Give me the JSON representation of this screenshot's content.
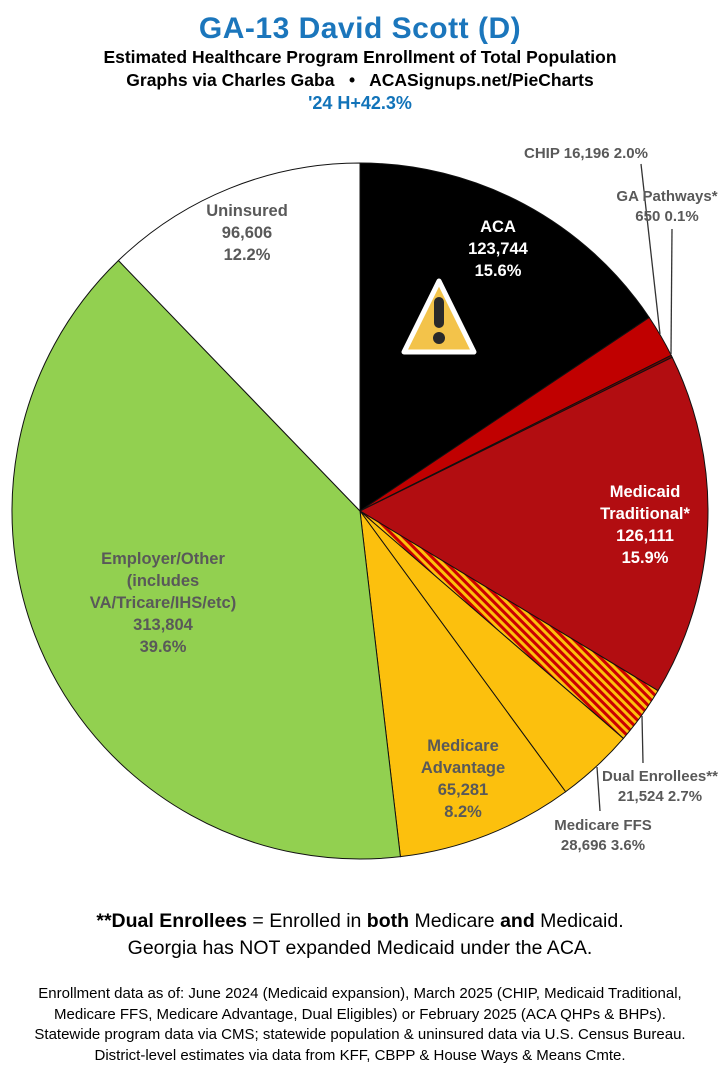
{
  "header": {
    "title": "GA-13 David Scott (D)",
    "subtitle": "Estimated Healthcare Program Enrollment of Total Population",
    "credit": "Graphs via Charles Gaba   •   ACASignups.net/PieCharts",
    "change_note": "'24 H+42.3%",
    "title_color": "#1b76bc",
    "change_color": "#1173b9"
  },
  "chart_data": {
    "type": "pie",
    "title": "Estimated Healthcare Program Enrollment of Total Population",
    "direction": "clockwise",
    "start_angle_deg": 0,
    "total_label_note": "values are people enrolled",
    "label_gray": "#595959",
    "slices": [
      {
        "id": "aca",
        "name": "ACA",
        "value": 123744,
        "value_label": "123,744",
        "pct": 15.6,
        "pct_label": "15.6%",
        "color": "#000000",
        "label_color": "#ffffff",
        "label_placement": "inside",
        "label_lines": [
          "ACA",
          "123,744",
          "15.6%"
        ],
        "warning_icon": true
      },
      {
        "id": "chip",
        "name": "CHIP",
        "value": 16196,
        "value_label": "16,196",
        "pct": 2.0,
        "pct_label": "2.0%",
        "color": "#c00000",
        "label_color": "#595959",
        "label_placement": "outside",
        "label_lines": [
          "CHIP 16,196 2.0%"
        ]
      },
      {
        "id": "pathways",
        "name": "GA Pathways*",
        "value": 650,
        "value_label": "650",
        "pct": 0.1,
        "pct_label": "0.1%",
        "color": "#7a0000",
        "label_color": "#595959",
        "label_placement": "outside",
        "label_lines": [
          "GA Pathways*",
          "650 0.1%"
        ]
      },
      {
        "id": "medicaid",
        "name": "Medicaid Traditional*",
        "value": 126111,
        "value_label": "126,111",
        "pct": 15.9,
        "pct_label": "15.9%",
        "color": "#b20d11",
        "label_color": "#ffffff",
        "label_placement": "inside",
        "label_lines": [
          "Medicaid",
          "Traditional*",
          "126,111",
          "15.9%"
        ]
      },
      {
        "id": "dual",
        "name": "Dual Enrollees**",
        "value": 21524,
        "value_label": "21,524",
        "pct": 2.7,
        "pct_label": "2.7%",
        "color": "hatch",
        "hatch": {
          "bg": "#fcc00d",
          "stripe": "#cc0000"
        },
        "label_color": "#595959",
        "label_placement": "outside",
        "label_lines": [
          "Dual Enrollees**",
          "21,524 2.7%"
        ]
      },
      {
        "id": "ffs",
        "name": "Medicare FFS",
        "value": 28696,
        "value_label": "28,696",
        "pct": 3.6,
        "pct_label": "3.6%",
        "color": "#fcc00d",
        "label_color": "#595959",
        "label_placement": "outside",
        "label_lines": [
          "Medicare FFS",
          "28,696 3.6%"
        ]
      },
      {
        "id": "advantage",
        "name": "Medicare Advantage",
        "value": 65281,
        "value_label": "65,281",
        "pct": 8.2,
        "pct_label": "8.2%",
        "color": "#fcc00d",
        "label_color": "#595959",
        "label_placement": "inside",
        "label_lines": [
          "Medicare",
          "Advantage",
          "65,281",
          "8.2%"
        ]
      },
      {
        "id": "employer",
        "name": "Employer/Other (includes VA/Tricare/IHS/etc)",
        "value": 313804,
        "value_label": "313,804",
        "pct": 39.6,
        "pct_label": "39.6%",
        "color": "#92d050",
        "label_color": "#595959",
        "label_placement": "inside",
        "label_lines": [
          "Employer/Other",
          "(includes",
          "VA/Tricare/IHS/etc)",
          "313,804",
          "39.6%"
        ]
      },
      {
        "id": "uninsured",
        "name": "Uninsured",
        "value": 96606,
        "value_label": "96,606",
        "pct": 12.2,
        "pct_label": "12.2%",
        "color": "#ffffff",
        "label_color": "#595959",
        "label_placement": "inside",
        "label_lines": [
          "Uninsured",
          "96,606",
          "12.2%"
        ]
      }
    ],
    "warning_icon": {
      "name": "warning-icon",
      "fill": "#f3c34a",
      "mark_color": "#2a2a2a",
      "border": "#ffffff"
    }
  },
  "footer": {
    "bold_line_segments": [
      {
        "text": "**Dual Enrollees",
        "bold": true
      },
      {
        "text": " = Enrolled in ",
        "bold": false
      },
      {
        "text": "both",
        "bold": true
      },
      {
        "text": " Medicare ",
        "bold": false
      },
      {
        "text": "and",
        "bold": true
      },
      {
        "text": " Medicaid.",
        "bold": false
      }
    ],
    "line2": "Georgia has NOT expanded Medicaid under the ACA.",
    "notes": [
      "Enrollment data as of: June 2024 (Medicaid expansion), March 2025 (CHIP, Medicaid Traditional,",
      "Medicare FFS, Medicare Advantage, Dual Eligibles) or February 2025 (ACA QHPs & BHPs).",
      "Statewide program data via CMS; statewide population & uninsured data via U.S. Census Bureau.",
      "District-level estimates via data from KFF, CBPP & House Ways & Means Cmte."
    ]
  }
}
